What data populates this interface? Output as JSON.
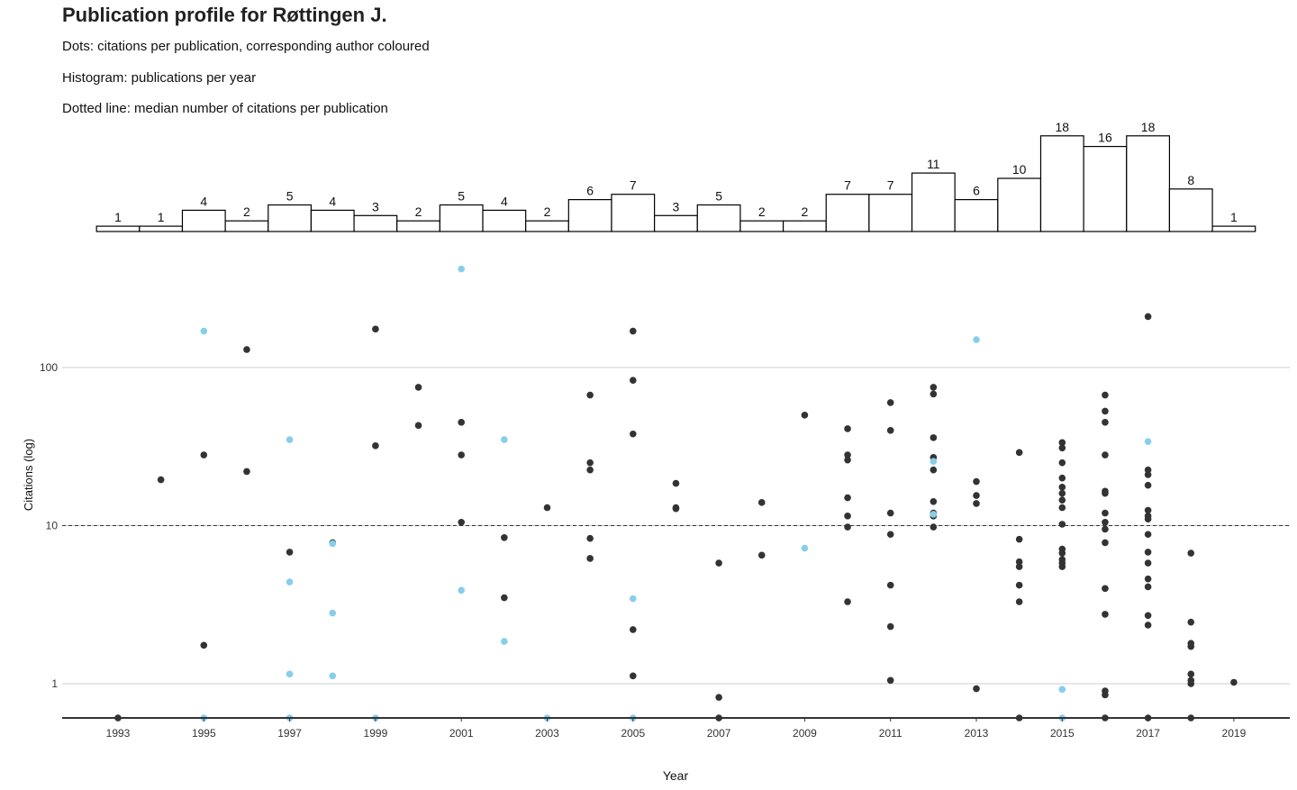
{
  "header": {
    "title": "Publication profile for Røttingen J.",
    "subtitle_lines": [
      "Dots: citations per publication, corresponding author coloured",
      "Histogram: publications per year",
      "Dotted line: median number of citations per publication"
    ]
  },
  "colors": {
    "dot": "#333333",
    "corresponding": "#87CEEB",
    "grid": "#cccccc",
    "bar_fill": "#ffffff",
    "bar_stroke": "#000000"
  },
  "chart_data": [
    {
      "type": "bar",
      "title": "",
      "categories": [
        "1993",
        "1994",
        "1995",
        "1996",
        "1997",
        "1998",
        "1999",
        "2000",
        "2001",
        "2002",
        "2003",
        "2004",
        "2005",
        "2006",
        "2007",
        "2008",
        "2009",
        "2010",
        "2011",
        "2012",
        "2013",
        "2014",
        "2015",
        "2016",
        "2017",
        "2018",
        "2019"
      ],
      "values": [
        1,
        1,
        4,
        2,
        5,
        4,
        3,
        2,
        5,
        4,
        2,
        6,
        7,
        3,
        5,
        2,
        2,
        7,
        7,
        11,
        6,
        10,
        18,
        16,
        18,
        8,
        1
      ],
      "data_labels": true
    },
    {
      "type": "scatter",
      "xlabel": "Year",
      "ylabel": "Citations (log)",
      "yscale": "log",
      "ylim": [
        0.6,
        650
      ],
      "xlim": [
        1992.2,
        2019.8
      ],
      "xticks": [
        "1993",
        "1995",
        "1997",
        "1999",
        "2001",
        "2003",
        "2005",
        "2007",
        "2009",
        "2011",
        "2013",
        "2015",
        "2017",
        "2019"
      ],
      "yticks": [
        "1",
        "10",
        "100"
      ],
      "median_line": 10,
      "grid": "horizontal",
      "series": [
        {
          "group": "other",
          "points": [
            [
              1993,
              0.6
            ],
            [
              1994,
              19.5
            ],
            [
              1995,
              28
            ],
            [
              1995,
              1.75
            ],
            [
              1996,
              130
            ],
            [
              1996,
              22
            ],
            [
              1997,
              6.8
            ],
            [
              1998,
              7.8
            ],
            [
              1999,
              175
            ],
            [
              1999,
              32
            ],
            [
              2000,
              75
            ],
            [
              2000,
              43
            ],
            [
              2001,
              45
            ],
            [
              2001,
              28
            ],
            [
              2001,
              10.5
            ],
            [
              2002,
              8.4
            ],
            [
              2002,
              3.5
            ],
            [
              2003,
              13
            ],
            [
              2004,
              67
            ],
            [
              2004,
              25
            ],
            [
              2004,
              22.5
            ],
            [
              2004,
              8.3
            ],
            [
              2004,
              6.2
            ],
            [
              2005,
              170
            ],
            [
              2005,
              83
            ],
            [
              2005,
              38
            ],
            [
              2005,
              2.2
            ],
            [
              2005,
              1.12
            ],
            [
              2006,
              18.5
            ],
            [
              2006,
              13
            ],
            [
              2006,
              12.8
            ],
            [
              2007,
              5.8
            ],
            [
              2007,
              0.82
            ],
            [
              2007,
              0.6
            ],
            [
              2008,
              14
            ],
            [
              2008,
              6.5
            ],
            [
              2009,
              50
            ],
            [
              2010,
              41
            ],
            [
              2010,
              28
            ],
            [
              2010,
              26
            ],
            [
              2010,
              15
            ],
            [
              2010,
              11.5
            ],
            [
              2010,
              9.8
            ],
            [
              2010,
              3.3
            ],
            [
              2011,
              60
            ],
            [
              2011,
              40
            ],
            [
              2011,
              12
            ],
            [
              2011,
              8.8
            ],
            [
              2011,
              4.2
            ],
            [
              2011,
              2.3
            ],
            [
              2011,
              1.05
            ],
            [
              2012,
              75
            ],
            [
              2012,
              68
            ],
            [
              2012,
              36
            ],
            [
              2012,
              27
            ],
            [
              2012,
              22.5
            ],
            [
              2012,
              14.2
            ],
            [
              2012,
              12
            ],
            [
              2012,
              11.5
            ],
            [
              2012,
              9.8
            ],
            [
              2013,
              19
            ],
            [
              2013,
              15.5
            ],
            [
              2013,
              13.8
            ],
            [
              2013,
              0.93
            ],
            [
              2014,
              29
            ],
            [
              2014,
              8.2
            ],
            [
              2014,
              5.9
            ],
            [
              2014,
              5.5
            ],
            [
              2014,
              4.2
            ],
            [
              2014,
              3.3
            ],
            [
              2014,
              0.6
            ],
            [
              2015,
              33.5
            ],
            [
              2015,
              31
            ],
            [
              2015,
              25
            ],
            [
              2015,
              20
            ],
            [
              2015,
              17.5
            ],
            [
              2015,
              16
            ],
            [
              2015,
              14.5
            ],
            [
              2015,
              13
            ],
            [
              2015,
              10.2
            ],
            [
              2015,
              7.1
            ],
            [
              2015,
              6.7
            ],
            [
              2015,
              6.1
            ],
            [
              2015,
              5.8
            ],
            [
              2015,
              5.5
            ],
            [
              2016,
              67
            ],
            [
              2016,
              53
            ],
            [
              2016,
              45
            ],
            [
              2016,
              28
            ],
            [
              2016,
              16.5
            ],
            [
              2016,
              16
            ],
            [
              2016,
              12
            ],
            [
              2016,
              10.5
            ],
            [
              2016,
              9.5
            ],
            [
              2016,
              7.8
            ],
            [
              2016,
              4
            ],
            [
              2016,
              2.75
            ],
            [
              2016,
              0.9
            ],
            [
              2016,
              0.85
            ],
            [
              2016,
              0.6
            ],
            [
              2017,
              210
            ],
            [
              2017,
              22.5
            ],
            [
              2017,
              21
            ],
            [
              2017,
              18
            ],
            [
              2017,
              12.5
            ],
            [
              2017,
              11.5
            ],
            [
              2017,
              11
            ],
            [
              2017,
              8.8
            ],
            [
              2017,
              6.8
            ],
            [
              2017,
              5.8
            ],
            [
              2017,
              4.6
            ],
            [
              2017,
              4.1
            ],
            [
              2017,
              2.7
            ],
            [
              2017,
              2.35
            ],
            [
              2017,
              0.6
            ],
            [
              2018,
              6.7
            ],
            [
              2018,
              2.45
            ],
            [
              2018,
              1.8
            ],
            [
              2018,
              1.72
            ],
            [
              2018,
              1.15
            ],
            [
              2018,
              1.05
            ],
            [
              2018,
              1.0
            ],
            [
              2018,
              0.6
            ],
            [
              2019,
              1.02
            ]
          ]
        },
        {
          "group": "corresponding",
          "points": [
            [
              1995,
              170
            ],
            [
              1995,
              0.6
            ],
            [
              1997,
              35
            ],
            [
              1997,
              4.4
            ],
            [
              1997,
              1.15
            ],
            [
              1997,
              0.6
            ],
            [
              1998,
              7.7
            ],
            [
              1998,
              2.8
            ],
            [
              1998,
              1.12
            ],
            [
              1999,
              0.6
            ],
            [
              2001,
              420
            ],
            [
              2001,
              3.9
            ],
            [
              2002,
              35
            ],
            [
              2002,
              1.85
            ],
            [
              2003,
              0.6
            ],
            [
              2005,
              3.45
            ],
            [
              2005,
              0.6
            ],
            [
              2009,
              7.2
            ],
            [
              2012,
              25.5
            ],
            [
              2012,
              11.8
            ],
            [
              2013,
              150
            ],
            [
              2015,
              0.92
            ],
            [
              2015,
              0.6
            ],
            [
              2017,
              34
            ]
          ]
        }
      ]
    }
  ]
}
